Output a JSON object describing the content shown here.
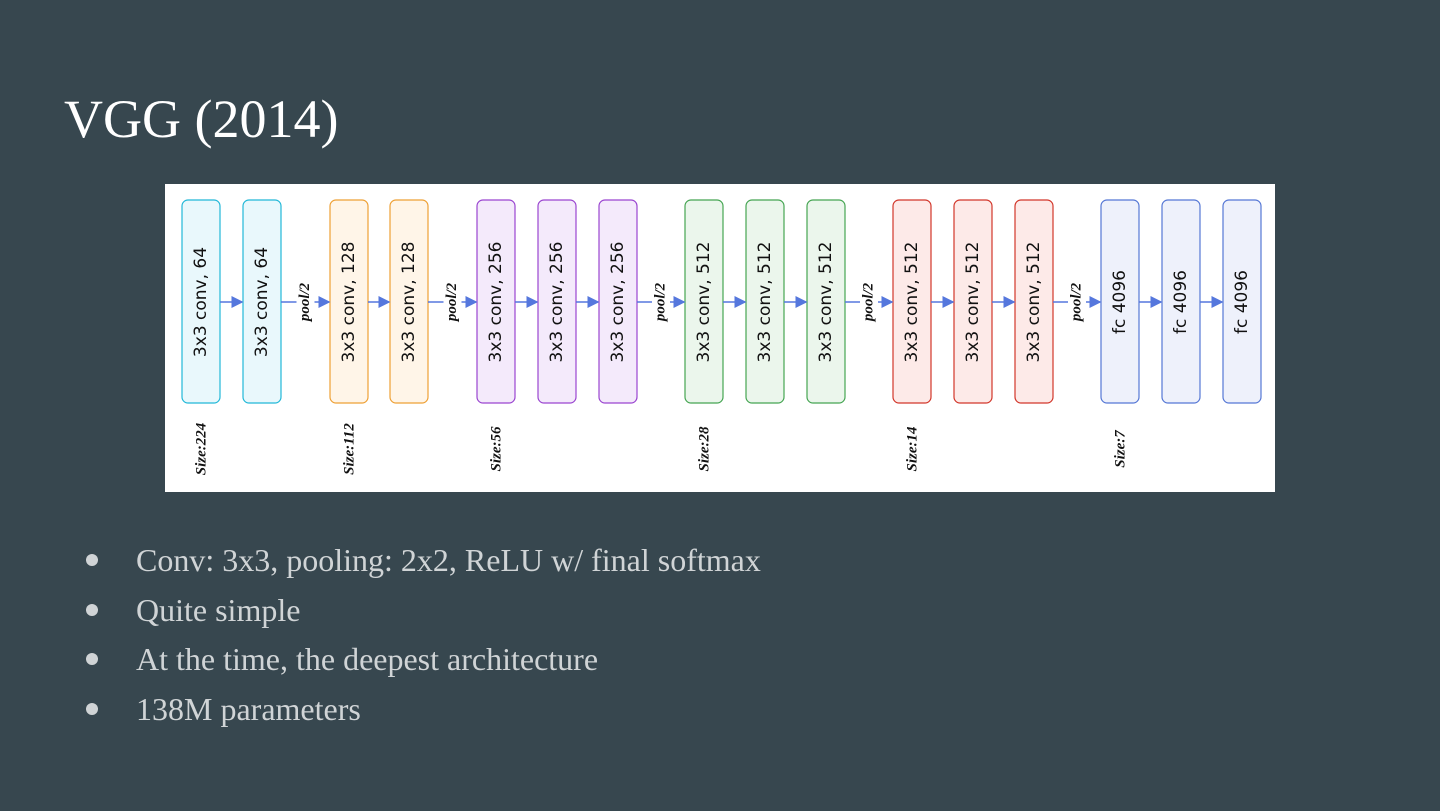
{
  "title": "VGG (2014)",
  "diagram": {
    "groups": [
      {
        "layers": [
          "3x3 conv, 64",
          "3x3 conv, 64"
        ],
        "size": "Size:224"
      },
      {
        "layers": [
          "3x3 conv, 128",
          "3x3 conv, 128"
        ],
        "size": "Size:112"
      },
      {
        "layers": [
          "3x3 conv, 256",
          "3x3 conv, 256",
          "3x3 conv, 256"
        ],
        "size": "Size:56"
      },
      {
        "layers": [
          "3x3 conv, 512",
          "3x3 conv, 512",
          "3x3 conv, 512"
        ],
        "size": "Size:28"
      },
      {
        "layers": [
          "3x3 conv, 512",
          "3x3 conv, 512",
          "3x3 conv, 512"
        ],
        "size": "Size:14"
      },
      {
        "layers": [
          "fc 4096",
          "fc 4096",
          "fc 4096"
        ],
        "size": "Size:7"
      }
    ],
    "pools": [
      "pool/2",
      "pool/2",
      "pool/2",
      "pool/2",
      "pool/2"
    ]
  },
  "bullets": [
    "Conv: 3x3, pooling: 2x2, ReLU w/ final softmax",
    "Quite simple",
    "At the time, the deepest architecture",
    "138M parameters"
  ]
}
